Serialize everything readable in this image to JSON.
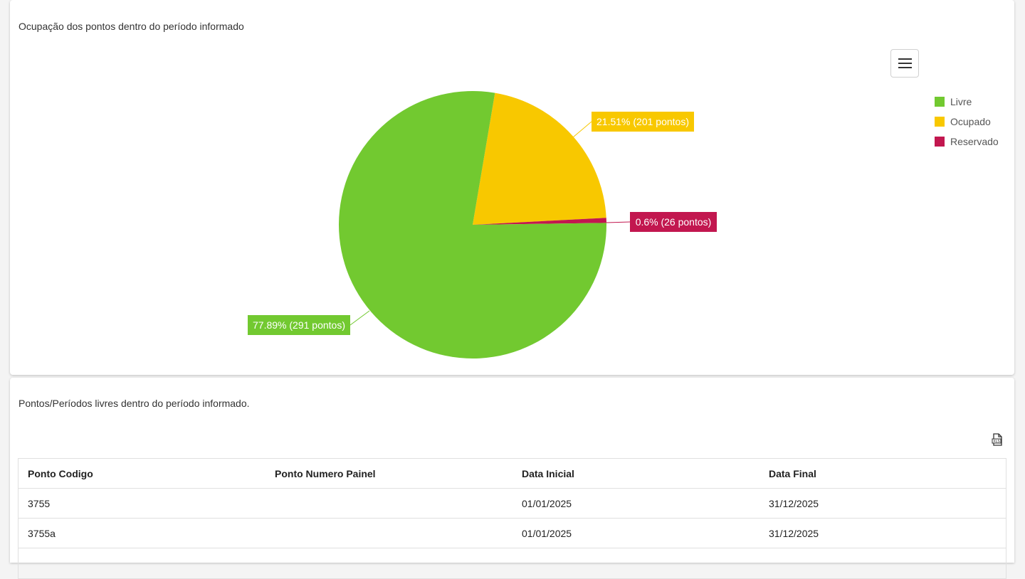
{
  "chart_card": {
    "title": "Ocupação dos pontos dentro do período informado",
    "menu_icon": "hamburger-icon"
  },
  "chart_data": {
    "type": "pie",
    "slices": [
      {
        "name": "Livre",
        "value": 77.89,
        "count": 291,
        "color": "#72c930",
        "label": "77.89% (291 pontos)"
      },
      {
        "name": "Ocupado",
        "value": 21.51,
        "count": 201,
        "color": "#f8c800",
        "label": "21.51% (201 pontos)"
      },
      {
        "name": "Reservado",
        "value": 0.6,
        "count": 26,
        "color": "#c2174f",
        "label": "0.6% (26 pontos)"
      }
    ],
    "legend_position": "top-right"
  },
  "table_card": {
    "title": "Pontos/Períodos livres dentro do período informado.",
    "export_icon": "excel-export-icon",
    "columns": [
      "Ponto Codigo",
      "Ponto Numero Painel",
      "Data Inicial",
      "Data Final"
    ],
    "rows": [
      [
        "3755",
        "",
        "01/01/2025",
        "31/12/2025"
      ],
      [
        "3755a",
        "",
        "01/01/2025",
        "31/12/2025"
      ]
    ]
  }
}
